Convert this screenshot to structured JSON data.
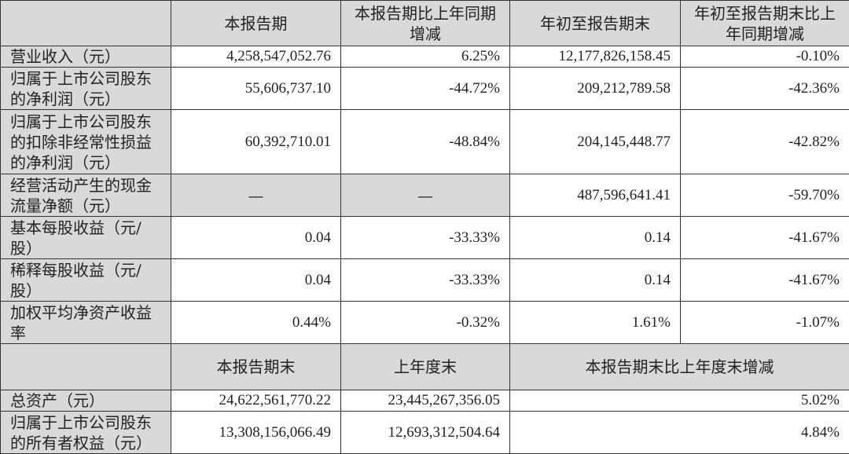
{
  "table1": {
    "headers": [
      "",
      "本报告期",
      "本报告期比上年同期增减",
      "年初至报告期末",
      "年初至报告期末比上年同期增减"
    ],
    "rows": [
      {
        "label": "营业收入（元）",
        "values": [
          "4,258,547,052.76",
          "6.25%",
          "12,177,826,158.45",
          "-0.10%"
        ]
      },
      {
        "label": "归属于上市公司股东的净利润（元）",
        "values": [
          "55,606,737.10",
          "-44.72%",
          "209,212,789.58",
          "-42.36%"
        ]
      },
      {
        "label": "归属于上市公司股东的扣除非经常性损益的净利润（元）",
        "values": [
          "60,392,710.01",
          "-48.84%",
          "204,145,448.77",
          "-42.82%"
        ]
      },
      {
        "label": "经营活动产生的现金流量净额（元）",
        "values": [
          "—",
          "—",
          "487,596,641.41",
          "-59.70%"
        ]
      },
      {
        "label": "基本每股收益（元/股）",
        "values": [
          "0.04",
          "-33.33%",
          "0.14",
          "-41.67%"
        ]
      },
      {
        "label": "稀释每股收益（元/股）",
        "values": [
          "0.04",
          "-33.33%",
          "0.14",
          "-41.67%"
        ]
      },
      {
        "label": "加权平均净资产收益率",
        "values": [
          "0.44%",
          "-0.32%",
          "1.61%",
          "-1.07%"
        ]
      }
    ]
  },
  "table2": {
    "headers": [
      "",
      "本报告期末",
      "上年度末",
      "本报告期末比上年度末增减"
    ],
    "rows": [
      {
        "label": "总资产（元）",
        "values": [
          "24,622,561,770.22",
          "23,445,267,356.05",
          "5.02%"
        ]
      },
      {
        "label": "归属于上市公司股东的所有者权益（元）",
        "values": [
          "13,308,156,066.49",
          "12,693,312,504.64",
          "4.84%"
        ]
      }
    ]
  },
  "colors": {
    "header_bg": "#d9d9d9",
    "border": "#333333"
  }
}
